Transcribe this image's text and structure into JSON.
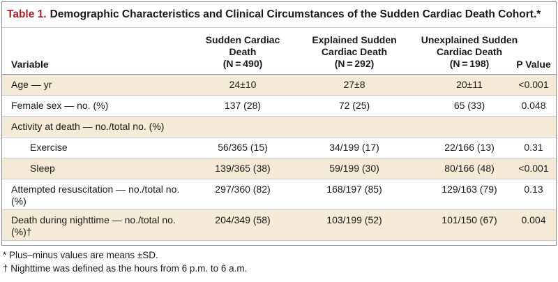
{
  "table": {
    "number_label": "Table 1.",
    "title": "Demographic Characteristics and Clinical Circumstances of the Sudden Cardiac Death Cohort.*",
    "header": {
      "variable": "Variable",
      "col1": [
        "Sudden Cardiac",
        "Death",
        "(N = 490)"
      ],
      "col2": [
        "Explained Sudden",
        "Cardiac Death",
        "(N = 292)"
      ],
      "col3": [
        "Unexplained Sudden",
        "Cardiac Death",
        "(N = 198)"
      ],
      "pvalue": "P Value"
    },
    "rows": [
      {
        "label": "Age — yr",
        "v1": "24±10",
        "v2": "27±8",
        "v3": "20±11",
        "p": "<0.001",
        "sub": false,
        "alt": true,
        "lines": 1
      },
      {
        "label": "Female sex — no. (%)",
        "v1": "137 (28)",
        "v2": "72 (25)",
        "v3": "65 (33)",
        "p": "0.048",
        "sub": false,
        "alt": false,
        "lines": 1
      },
      {
        "label": "Activity at death — no./total no. (%)",
        "v1": "",
        "v2": "",
        "v3": "",
        "p": "",
        "sub": false,
        "alt": true,
        "lines": 1
      },
      {
        "label": "Exercise",
        "v1": "56/365 (15)",
        "v2": "34/199 (17)",
        "v3": "22/166 (13)",
        "p": "0.31",
        "sub": true,
        "alt": false,
        "lines": 1
      },
      {
        "label": "Sleep",
        "v1": "139/365 (38)",
        "v2": "59/199 (30)",
        "v3": "80/166 (48)",
        "p": "<0.001",
        "sub": true,
        "alt": true,
        "lines": 1
      },
      {
        "label": "Attempted resuscitation — no./total no. (%)",
        "v1": "297/360 (82)",
        "v2": "168/197 (85)",
        "v3": "129/163 (79)",
        "p": "0.13",
        "sub": false,
        "alt": false,
        "lines": 2
      },
      {
        "label": "Death during nighttime — no./total no. (%)†",
        "v1": "204/349 (58)",
        "v2": "103/199 (52)",
        "v3": "101/150 (67)",
        "p": "0.004",
        "sub": false,
        "alt": true,
        "lines": 2
      }
    ]
  },
  "footnotes": [
    "* Plus–minus values are means ±SD.",
    "† Nighttime was defined as the hours from 6 p.m. to 6 a.m."
  ]
}
